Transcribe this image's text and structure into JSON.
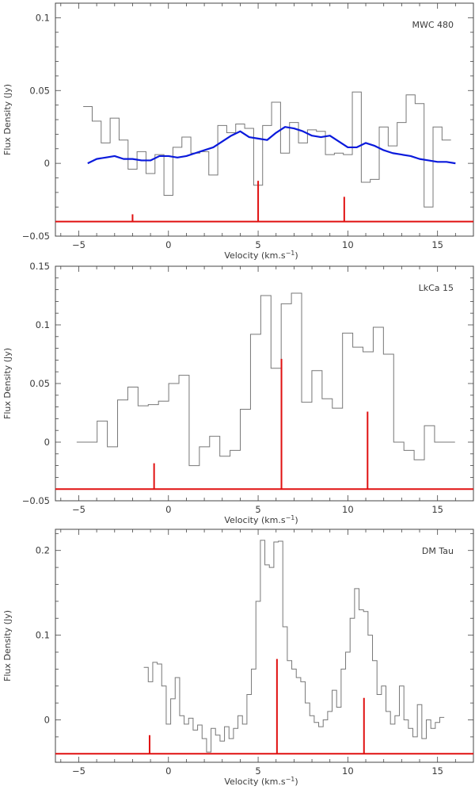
{
  "colors": {
    "frame": "#444444",
    "histogram": "#777777",
    "model": "#0a1adc",
    "markers": "#e01010",
    "text": "#3a3a3a"
  },
  "chart_data": [
    {
      "type": "line",
      "title": "MWC 480",
      "xlabel": "Velocity (km.s",
      "xlabel_exponent": "−1",
      "xlabel_suffix": ")",
      "ylabel": "Flux Density (Jy)",
      "xlim": [
        -6.3,
        17.0
      ],
      "ylim": [
        -0.05,
        0.11
      ],
      "xticks": [
        -5,
        0,
        5,
        10,
        15
      ],
      "yticks": [
        -0.05,
        0,
        0.05,
        0.1
      ],
      "ytick_labels": [
        "−0.05",
        "0",
        "0.05",
        "0.1"
      ],
      "channel_width": 0.5,
      "series": [
        {
          "style": "step",
          "x": [
            -4.5,
            -4.0,
            -3.5,
            -3.0,
            -2.5,
            -2.0,
            -1.5,
            -1.0,
            -0.5,
            0.0,
            0.5,
            1.0,
            1.5,
            2.0,
            2.5,
            3.0,
            3.5,
            4.0,
            4.5,
            5.0,
            5.5,
            6.0,
            6.5,
            7.0,
            7.5,
            8.0,
            8.5,
            9.0,
            9.5,
            10.0,
            10.5,
            11.0,
            11.5,
            12.0,
            12.5,
            13.0,
            13.5,
            14.0,
            14.5,
            15.0,
            15.5
          ],
          "y": [
            0.039,
            0.029,
            0.014,
            0.031,
            0.016,
            -0.004,
            0.008,
            -0.007,
            0.006,
            -0.022,
            0.011,
            0.018,
            0.007,
            0.008,
            -0.008,
            0.026,
            0.021,
            0.027,
            0.024,
            -0.015,
            0.026,
            0.042,
            0.007,
            0.028,
            0.014,
            0.023,
            0.022,
            0.006,
            0.007,
            0.006,
            0.049,
            -0.013,
            -0.011,
            0.025,
            0.012,
            0.028,
            0.047,
            0.041,
            -0.03,
            0.025,
            0.016
          ]
        },
        {
          "style": "smooth",
          "x": [
            -4.5,
            -4.0,
            -3.5,
            -3.0,
            -2.5,
            -2.0,
            -1.5,
            -1.0,
            -0.5,
            0.0,
            0.5,
            1.0,
            1.5,
            2.0,
            2.5,
            3.0,
            3.5,
            4.0,
            4.5,
            5.0,
            5.5,
            6.0,
            6.5,
            7.0,
            7.5,
            8.0,
            8.5,
            9.0,
            9.5,
            10.0,
            10.5,
            11.0,
            11.5,
            12.0,
            12.5,
            13.0,
            13.5,
            14.0,
            14.5,
            15.0,
            15.5,
            16.0
          ],
          "y": [
            0.0,
            0.003,
            0.004,
            0.005,
            0.003,
            0.003,
            0.002,
            0.002,
            0.005,
            0.005,
            0.004,
            0.005,
            0.007,
            0.009,
            0.011,
            0.015,
            0.019,
            0.022,
            0.018,
            0.017,
            0.016,
            0.021,
            0.025,
            0.024,
            0.022,
            0.019,
            0.018,
            0.019,
            0.015,
            0.011,
            0.011,
            0.014,
            0.012,
            0.009,
            0.007,
            0.006,
            0.005,
            0.003,
            0.002,
            0.001,
            0.001,
            0.0
          ]
        },
        {
          "style": "markers",
          "baseline": -0.04,
          "x": [
            -2.0,
            5.0,
            9.8
          ],
          "y": [
            -0.035,
            -0.012,
            -0.023
          ]
        }
      ]
    },
    {
      "type": "line",
      "title": "LkCa 15",
      "xlabel": "Velocity (km.s",
      "xlabel_exponent": "−1",
      "xlabel_suffix": ")",
      "ylabel": "Flux Density (Jy)",
      "xlim": [
        -6.3,
        17.0
      ],
      "ylim": [
        -0.05,
        0.15
      ],
      "xticks": [
        -5,
        0,
        5,
        10,
        15
      ],
      "yticks": [
        -0.05,
        0,
        0.05,
        0.1,
        0.15
      ],
      "ytick_labels": [
        "−0.05",
        "0",
        "0.05",
        "0.1",
        "0.15"
      ],
      "channel_width": 0.57,
      "series": [
        {
          "style": "step",
          "x": [
            -4.83,
            -4.26,
            -3.69,
            -3.12,
            -2.55,
            -1.98,
            -1.41,
            -0.84,
            -0.27,
            0.3,
            0.87,
            1.44,
            2.01,
            2.58,
            3.15,
            3.72,
            4.29,
            4.86,
            5.43,
            6.0,
            6.57,
            7.14,
            7.71,
            8.28,
            8.85,
            9.42,
            9.99,
            10.56,
            11.13,
            11.7,
            12.27,
            12.84,
            13.41,
            13.98,
            14.55,
            15.12,
            15.69
          ],
          "y": [
            0.0,
            0.0,
            0.018,
            -0.004,
            0.036,
            0.047,
            0.031,
            0.032,
            0.035,
            0.05,
            0.057,
            -0.02,
            -0.004,
            0.005,
            -0.012,
            -0.007,
            0.028,
            0.092,
            0.125,
            0.063,
            0.118,
            0.127,
            0.034,
            0.061,
            0.037,
            0.029,
            0.093,
            0.081,
            0.077,
            0.098,
            0.075,
            0.0,
            -0.007,
            -0.015,
            0.014,
            0.0,
            0.0
          ]
        },
        {
          "style": "markers",
          "baseline": -0.04,
          "x": [
            -0.8,
            6.3,
            11.1
          ],
          "y": [
            -0.018,
            0.071,
            0.026
          ]
        }
      ]
    },
    {
      "type": "line",
      "title": "DM Tau",
      "xlabel": "Velocity (km.s",
      "xlabel_exponent": "−1",
      "xlabel_suffix": ")",
      "ylabel": "Flux Density (Jy)",
      "xlim": [
        -6.3,
        17.0
      ],
      "ylim": [
        -0.05,
        0.225
      ],
      "xticks": [
        -5,
        0,
        5,
        10,
        15
      ],
      "yticks": [
        0,
        0.1,
        0.2
      ],
      "ytick_labels": [
        "0",
        "0.1",
        "0.2"
      ],
      "channel_width": 0.25,
      "series": [
        {
          "style": "step",
          "x": [
            -1.25,
            -1.0,
            -0.75,
            -0.5,
            -0.25,
            0.0,
            0.25,
            0.5,
            0.75,
            1.0,
            1.25,
            1.5,
            1.75,
            2.0,
            2.25,
            2.5,
            2.75,
            3.0,
            3.25,
            3.5,
            3.75,
            4.0,
            4.25,
            4.5,
            4.75,
            5.0,
            5.25,
            5.5,
            5.75,
            6.0,
            6.25,
            6.5,
            6.75,
            7.0,
            7.25,
            7.5,
            7.75,
            8.0,
            8.25,
            8.5,
            8.75,
            9.0,
            9.25,
            9.5,
            9.75,
            10.0,
            10.25,
            10.5,
            10.75,
            11.0,
            11.25,
            11.5,
            11.75,
            12.0,
            12.25,
            12.5,
            12.75,
            13.0,
            13.25,
            13.5,
            13.75,
            14.0,
            14.25,
            14.5,
            14.75,
            15.0,
            15.25
          ],
          "y": [
            0.062,
            0.045,
            0.068,
            0.066,
            0.04,
            -0.005,
            0.025,
            0.05,
            0.005,
            -0.005,
            0.002,
            -0.012,
            -0.006,
            -0.022,
            -0.038,
            -0.01,
            -0.018,
            -0.025,
            -0.008,
            -0.022,
            -0.01,
            0.005,
            -0.005,
            0.03,
            0.06,
            0.14,
            0.212,
            0.183,
            0.18,
            0.21,
            0.211,
            0.11,
            0.07,
            0.06,
            0.05,
            0.045,
            0.02,
            0.005,
            -0.003,
            -0.008,
            0.0,
            0.01,
            0.035,
            0.015,
            0.06,
            0.08,
            0.12,
            0.155,
            0.13,
            0.128,
            0.1,
            0.07,
            0.03,
            0.04,
            0.01,
            -0.005,
            0.005,
            0.04,
            0.0,
            -0.01,
            -0.02,
            0.018,
            -0.022,
            0.0,
            -0.01,
            -0.003,
            0.003
          ]
        },
        {
          "style": "markers",
          "baseline": -0.04,
          "x": [
            -1.05,
            6.05,
            10.9
          ],
          "y": [
            -0.018,
            0.072,
            0.026
          ]
        }
      ]
    }
  ]
}
